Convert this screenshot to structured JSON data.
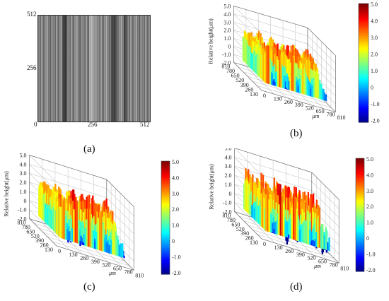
{
  "figure": {
    "panels": [
      {
        "id": "a",
        "caption": "(a)",
        "kind": "grayscale-image",
        "y_ticks": [
          "512",
          "256",
          "0"
        ],
        "x_ticks": [
          "256",
          "512"
        ]
      },
      {
        "id": "b",
        "caption": "(b)",
        "kind": "3d-surface",
        "z_label": "Relative height(μm)",
        "z_ticks": [
          "5.0",
          "4.0",
          "3.0",
          "2.0",
          "1.0",
          "0",
          "-1.0",
          "-2.0"
        ],
        "y_ticks": [
          "810",
          "780",
          "650",
          "520",
          "390",
          "260",
          "130"
        ],
        "x_ticks": [
          "0",
          "130",
          "260",
          "390",
          "520",
          "650",
          "780",
          "810"
        ],
        "unit": "μm",
        "colorbar_ticks": [
          "5.0",
          "4.0",
          "3.0",
          "2.0",
          "1.0",
          "0",
          "-1.0",
          "-2.0"
        ]
      },
      {
        "id": "c",
        "caption": "(c)",
        "kind": "3d-surface",
        "z_label": "Relative height(μm)",
        "z_ticks": [
          "5.0",
          "4.0",
          "3.0",
          "2.0",
          "1.0",
          "0",
          "-1.0",
          "-2.0"
        ],
        "y_ticks": [
          "810",
          "780",
          "650",
          "520",
          "390",
          "260",
          "130"
        ],
        "x_ticks": [
          "0",
          "130",
          "260",
          "390",
          "520",
          "650",
          "780",
          "810"
        ],
        "unit": "μm",
        "colorbar_ticks": [
          "5.0",
          "4.0",
          "3.0",
          "2.0",
          "1.0",
          "0",
          "-1.0",
          "-2.0"
        ]
      },
      {
        "id": "d",
        "caption": "(d)",
        "kind": "3d-surface",
        "z_label": "Relative height(μm)",
        "z_ticks": [
          "5.0",
          "4.0",
          "3.0",
          "2.0",
          "1.0",
          "0",
          "-1.0",
          "-2.0"
        ],
        "y_ticks": [
          "810",
          "780",
          "650",
          "520",
          "390",
          "260",
          "130"
        ],
        "x_ticks": [
          "0",
          "130",
          "260",
          "390",
          "520",
          "650",
          "780",
          "810"
        ],
        "unit": "μm",
        "colorbar_ticks": [
          "5.0",
          "4.0",
          "3.0",
          "2.0",
          "1.0",
          "0",
          "-1.0",
          "-2.0"
        ]
      }
    ]
  },
  "colors": {
    "colormap": [
      "#00007f",
      "#0000ff",
      "#007fff",
      "#00ffff",
      "#7fff7f",
      "#ffff00",
      "#ff7f00",
      "#ff0000",
      "#7f0000"
    ]
  }
}
